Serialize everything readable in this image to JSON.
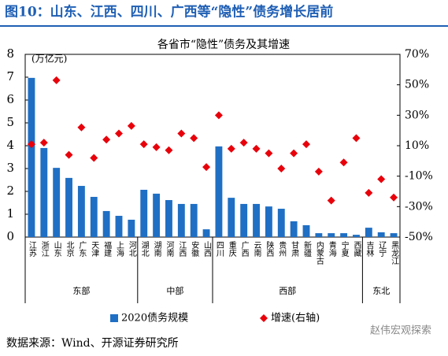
{
  "header": "图10：山东、江西、四川、广西等“隐性”债务增长居前",
  "chart_data": {
    "type": "bar",
    "title": "各省市“隐性”债务及其增速",
    "y_label": "(万亿元)",
    "categories": [
      "江苏",
      "浙江",
      "山东",
      "北京",
      "广东",
      "天津",
      "福建",
      "上海",
      "河北",
      "湖北",
      "湖南",
      "河南",
      "江西",
      "安徽",
      "山西",
      "四川",
      "重庆",
      "广西",
      "云南",
      "陕西",
      "贵州",
      "甘肃",
      "新疆",
      "内蒙古",
      "青海",
      "宁夏",
      "西藏",
      "吉林",
      "辽宁",
      "黑龙江"
    ],
    "groups": [
      {
        "name": "东部",
        "count": 9
      },
      {
        "name": "中部",
        "count": 6
      },
      {
        "name": "西部",
        "count": 12
      },
      {
        "name": "东北",
        "count": 3
      }
    ],
    "series": [
      {
        "name": "2020债务规模",
        "type": "bar",
        "color": "#1f6fc4",
        "values": [
          6.97,
          3.9,
          3.03,
          2.59,
          2.24,
          1.76,
          1.14,
          0.93,
          0.76,
          2.07,
          1.9,
          1.62,
          1.45,
          1.45,
          0.34,
          3.97,
          1.72,
          1.45,
          1.45,
          1.34,
          1.24,
          0.69,
          0.52,
          0.17,
          0.17,
          0.17,
          0.1,
          0.41,
          0.21,
          0.17
        ]
      },
      {
        "name": "增速(右轴)",
        "type": "scatter",
        "axis": "y2",
        "color": "#e8000b",
        "values": [
          11,
          12,
          53,
          4,
          22,
          2,
          14,
          18,
          23,
          11,
          9,
          7,
          18,
          15,
          -4,
          30,
          8,
          12,
          8,
          5,
          -5,
          5,
          11,
          -7,
          -26,
          -1,
          15,
          -21,
          -12,
          -24
        ]
      }
    ],
    "ylim": [
      0,
      8
    ],
    "yticks": [
      0,
      1,
      2,
      3,
      4,
      5,
      6,
      7,
      8
    ],
    "y2lim": [
      -50,
      70
    ],
    "y2ticks": [
      {
        "value": 70,
        "label": "70%"
      },
      {
        "value": 50,
        "label": "50%"
      },
      {
        "value": 30,
        "label": "30%"
      },
      {
        "value": 10,
        "label": "10%"
      },
      {
        "value": -10,
        "label": "-10%"
      },
      {
        "value": -30,
        "label": "-30%"
      },
      {
        "value": -50,
        "label": "-50%"
      }
    ]
  },
  "source": "数据来源：Wind、开源证券研究所",
  "watermark": "赵伟宏观探索"
}
